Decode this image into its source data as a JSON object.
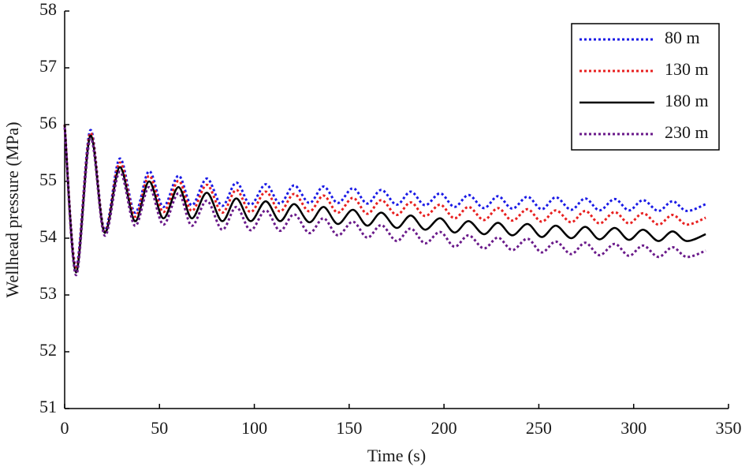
{
  "chart_data": {
    "type": "line",
    "x_label": "Time (s)",
    "y_label": "Wellhead pressure (MPa)",
    "xlim": [
      0,
      350
    ],
    "xticks": [
      0,
      50,
      100,
      150,
      200,
      250,
      300,
      350
    ],
    "ylim": [
      51,
      58
    ],
    "yticks": [
      51,
      52,
      53,
      54,
      55,
      56,
      57,
      58
    ],
    "legend": "upper right",
    "x": [
      0,
      6,
      13.5,
      21,
      29,
      37,
      44.5,
      52,
      60,
      67,
      75,
      83,
      90.5,
      98,
      106,
      113.5,
      121,
      129,
      136.5,
      144,
      152,
      159.5,
      167,
      175,
      182.5,
      190,
      198,
      205.5,
      213,
      221,
      228.5,
      236,
      244,
      251.5,
      259,
      267,
      274.5,
      282,
      290,
      297.5,
      305,
      313,
      320.5,
      328,
      338
    ],
    "series": [
      {
        "name": "80 m",
        "color": "#1a1ae6",
        "linestyle": "dotted",
        "values": [
          56.0,
          53.5,
          55.9,
          54.15,
          55.4,
          54.45,
          55.18,
          54.55,
          55.1,
          54.58,
          55.05,
          54.57,
          54.98,
          54.59,
          54.95,
          54.61,
          54.93,
          54.62,
          54.91,
          54.62,
          54.88,
          54.61,
          54.85,
          54.59,
          54.82,
          54.58,
          54.79,
          54.55,
          54.76,
          54.53,
          54.74,
          54.52,
          54.73,
          54.51,
          54.72,
          54.5,
          54.7,
          54.49,
          54.69,
          54.49,
          54.67,
          54.48,
          54.65,
          54.48,
          54.6
        ]
      },
      {
        "name": "130 m",
        "color": "#e82020",
        "linestyle": "dotted",
        "values": [
          56.0,
          53.45,
          55.85,
          54.12,
          55.33,
          54.38,
          55.1,
          54.46,
          55.01,
          54.48,
          54.94,
          54.45,
          54.85,
          54.46,
          54.82,
          54.47,
          54.78,
          54.47,
          54.75,
          54.45,
          54.71,
          54.43,
          54.67,
          54.41,
          54.63,
          54.39,
          54.59,
          54.35,
          54.55,
          54.32,
          54.53,
          54.31,
          54.51,
          54.29,
          54.49,
          54.28,
          54.48,
          54.26,
          54.46,
          54.26,
          54.44,
          54.24,
          54.41,
          54.24,
          54.36
        ]
      },
      {
        "name": "180 m",
        "color": "#000000",
        "linestyle": "solid",
        "values": [
          56.0,
          53.4,
          55.8,
          54.1,
          55.25,
          54.3,
          55.0,
          54.35,
          54.9,
          54.35,
          54.8,
          54.3,
          54.7,
          54.3,
          54.65,
          54.3,
          54.6,
          54.28,
          54.55,
          54.25,
          54.5,
          54.22,
          54.45,
          54.18,
          54.4,
          54.15,
          54.35,
          54.1,
          54.3,
          54.07,
          54.27,
          54.05,
          54.25,
          54.02,
          54.22,
          54.0,
          54.2,
          53.98,
          54.18,
          53.97,
          54.15,
          53.95,
          54.12,
          53.95,
          54.07
        ]
      },
      {
        "name": "230 m",
        "color": "#6a1a8a",
        "linestyle": "dotted",
        "values": [
          55.95,
          53.35,
          55.75,
          54.05,
          55.17,
          54.22,
          54.9,
          54.24,
          54.79,
          54.22,
          54.66,
          54.15,
          54.55,
          54.14,
          54.49,
          54.13,
          54.42,
          54.09,
          54.35,
          54.05,
          54.29,
          54.01,
          54.23,
          53.95,
          54.17,
          53.91,
          54.11,
          53.85,
          54.05,
          53.82,
          54.01,
          53.79,
          53.99,
          53.75,
          53.94,
          53.72,
          53.92,
          53.7,
          53.9,
          53.69,
          53.87,
          53.67,
          53.84,
          53.67,
          53.78
        ]
      }
    ]
  }
}
